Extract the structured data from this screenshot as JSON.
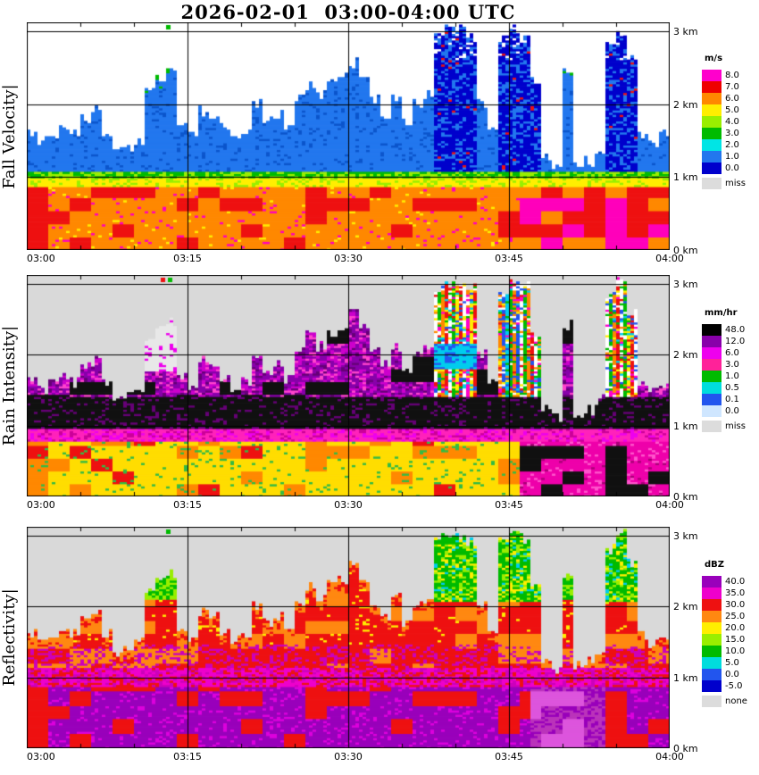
{
  "title": "2026-02-01  03:00-04:00 UTC",
  "axes": {
    "x_ticks": [
      "03:00",
      "03:15",
      "03:30",
      "03:45",
      "04:00"
    ],
    "y_ticks": [
      "0 km",
      "1 km",
      "2 km",
      "3 km"
    ]
  },
  "panels": [
    {
      "id": "fall_velocity",
      "ylabel": "Fall Velocity|",
      "units": "m/s"
    },
    {
      "id": "rain_intensity",
      "ylabel": "Rain Intensity|",
      "units": "mm/hr"
    },
    {
      "id": "reflectivity",
      "ylabel": "Reflectivity|",
      "units": "dBZ"
    }
  ],
  "chart_data": {
    "type": "heatmap",
    "title": "2026-02-01  03:00-04:00 UTC",
    "x_axis": {
      "start": "03:00",
      "end": "04:00",
      "tick_labels": [
        "03:00",
        "03:15",
        "03:30",
        "03:45",
        "04:00"
      ],
      "minor_tick_minutes": 5,
      "time_step_minutes": 1
    },
    "y_axis": {
      "range_km": [
        0,
        3.12
      ],
      "tick_labels": [
        "0 km",
        "1 km",
        "2 km",
        "3 km"
      ],
      "gridlines_km": [
        1,
        2,
        3
      ]
    },
    "echo_top_km_per_minute": [
      1.6,
      1.5,
      1.6,
      1.7,
      1.6,
      1.8,
      1.9,
      1.6,
      1.35,
      1.4,
      1.5,
      2.2,
      2.35,
      2.45,
      1.7,
      1.55,
      1.9,
      1.85,
      1.65,
      1.5,
      1.6,
      2.0,
      1.75,
      1.85,
      1.65,
      2.05,
      2.25,
      2.1,
      2.3,
      2.35,
      2.55,
      2.35,
      2.05,
      1.85,
      2.1,
      1.75,
      2.0,
      2.1,
      2.95,
      3.0,
      3.0,
      2.9,
      2.0,
      1.6,
      2.9,
      3.0,
      2.95,
      2.3,
      1.25,
      1.1,
      2.4,
      1.15,
      1.2,
      1.35,
      2.8,
      3.0,
      2.6,
      1.55,
      1.45,
      1.55,
      1.35
    ],
    "rain_layer_top_km": 0.85,
    "melting_layer_band_km": [
      0.85,
      1.07
    ],
    "bright_band_km": [
      0.96,
      1.4
    ],
    "deep_column_minutes": [
      38,
      39,
      40,
      41,
      44,
      45,
      46,
      47,
      54,
      55,
      56
    ],
    "narrow_spike_minutes": [
      11,
      12,
      13,
      50
    ],
    "attenuated_column_minutes": [
      11,
      12,
      13
    ],
    "shallow_gap_minutes": [
      48,
      49,
      51,
      52,
      53
    ],
    "panels": [
      {
        "name": "Fall Velocity",
        "units": "m/s",
        "legend": [
          {
            "label": "8.0",
            "color": "#ff00cc"
          },
          {
            "label": "7.0",
            "color": "#ee0000"
          },
          {
            "label": "6.0",
            "color": "#ff8800"
          },
          {
            "label": "5.0",
            "color": "#ffee00"
          },
          {
            "label": "4.0",
            "color": "#99ee00"
          },
          {
            "label": "3.0",
            "color": "#00bb00"
          },
          {
            "label": "2.0",
            "color": "#00e5e5"
          },
          {
            "label": "1.0",
            "color": "#2277ee"
          },
          {
            "label": "0.0",
            "color": "#0000cc"
          },
          {
            "label": "miss",
            "color": "#dcdcdc"
          }
        ],
        "paint": {
          "bg": "#ffffff",
          "rain": [
            "#ff8800",
            "#ee1111",
            "#ff00bb",
            "#ffee00"
          ],
          "rain_late": [
            "#ee1111",
            "#ff00bb",
            "#ff8800"
          ],
          "melt": [
            "#ffee00",
            "#99ee00",
            "#00bb00"
          ],
          "cloud": "#2277ee",
          "cloud_shade": "#0b55cc",
          "cloud_deep": "#0000cc",
          "deep_speck": "#ee1111",
          "gap": "#ffffff",
          "tip": "#00bb00"
        }
      },
      {
        "name": "Rain Intensity",
        "units": "mm/hr",
        "legend": [
          {
            "label": "48.0",
            "color": "#000000"
          },
          {
            "label": "12.0",
            "color": "#8800aa"
          },
          {
            "label": "6.0",
            "color": "#ee00ee"
          },
          {
            "label": "3.0",
            "color": "#ff2299"
          },
          {
            "label": "1.0",
            "color": "#00bb00"
          },
          {
            "label": "0.5",
            "color": "#00dddd"
          },
          {
            "label": "0.1",
            "color": "#2255ee"
          },
          {
            "label": "0.0",
            "color": "#cfe6ff"
          },
          {
            "label": "miss",
            "color": "#dcdcdc"
          }
        ],
        "paint": {
          "bg": "#d9d9d9",
          "rain": [
            "#ffdd00",
            "#ff8800",
            "#ee1111",
            "#33bb44",
            "#ff00bb"
          ],
          "rain_late": [
            "#ee00aa",
            "#111111",
            "#ff55cc",
            "#aa0077"
          ],
          "band": [
            "#ff22bb",
            "#ee00ee",
            "#cc0099"
          ],
          "bright": "#111111",
          "bright_edge": "#660077",
          "upper": [
            "#8800aa",
            "#cc00cc",
            "#111111",
            "#ff44cc",
            "#660077"
          ],
          "col": [
            "#ffee00",
            "#00bb00",
            "#00ccee",
            "#ee1111",
            "#ff8800",
            "#ff00cc",
            "#ffffff",
            "#2255ee"
          ],
          "blob_cyan": "#00ccee",
          "blob_blue": "#2255ee",
          "miss_bg": "#e8e8e8",
          "miss_speck": "#ee00ee"
        }
      },
      {
        "name": "Reflectivity",
        "units": "dBZ",
        "legend": [
          {
            "label": "40.0",
            "color": "#9900bb"
          },
          {
            "label": "35.0",
            "color": "#ee00cc"
          },
          {
            "label": "30.0",
            "color": "#ee1111"
          },
          {
            "label": "25.0",
            "color": "#ff8811"
          },
          {
            "label": "20.0",
            "color": "#ffee00"
          },
          {
            "label": "15.0",
            "color": "#99ee00"
          },
          {
            "label": "10.0",
            "color": "#00bb00"
          },
          {
            "label": "5.0",
            "color": "#00dddd"
          },
          {
            "label": "0.0",
            "color": "#2255ee"
          },
          {
            "label": "-5.0",
            "color": "#0000cc"
          },
          {
            "label": "none",
            "color": "#dcdcdc"
          }
        ],
        "paint": {
          "bg": "#d9d9d9",
          "low": [
            "#9900bb",
            "#ee1111",
            "#dd00dd"
          ],
          "low_gap": [
            "#bb33bb",
            "#dd55dd",
            "#9900bb"
          ],
          "band": [
            "#ee00cc",
            "#ee1111",
            "#cc00bb"
          ],
          "mid": [
            "#ee1111",
            "#ff8811",
            "#ffee00",
            "#cc00bb"
          ],
          "top": [
            "#00bb00",
            "#99ee00",
            "#ffee00",
            "#00ccee"
          ],
          "tip": "#ff8811"
        }
      }
    ]
  }
}
